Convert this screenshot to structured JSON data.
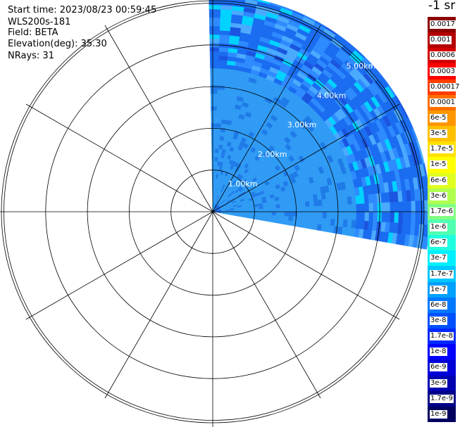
{
  "header": {
    "start_time": "Start time: 2023/08/23 00:59:45",
    "instrument": "WLS200s-181",
    "field": "Field: BETA",
    "elevation": "Elevation(deg): 35.30",
    "nrays": "NRays: 31"
  },
  "colorbar": {
    "units": "-1 sr",
    "levels": [
      {
        "label": "0.0017",
        "color": "#8c0000"
      },
      {
        "label": "0.001",
        "color": "#b40000"
      },
      {
        "label": "0.0006",
        "color": "#d40000"
      },
      {
        "label": "0.0003",
        "color": "#ff0000"
      },
      {
        "label": "0.00017",
        "color": "#ff3c00"
      },
      {
        "label": "0.0001",
        "color": "#ff6e00"
      },
      {
        "label": "6e-5",
        "color": "#ff9600"
      },
      {
        "label": "3e-5",
        "color": "#ffc000"
      },
      {
        "label": "1.7e-5",
        "color": "#ffe000"
      },
      {
        "label": "1e-5",
        "color": "#ffff00"
      },
      {
        "label": "6e-6",
        "color": "#e0ff20"
      },
      {
        "label": "3e-6",
        "color": "#b0ff50"
      },
      {
        "label": "1.7e-6",
        "color": "#80ff80"
      },
      {
        "label": "1e-6",
        "color": "#50ffb0"
      },
      {
        "label": "6e-7",
        "color": "#20ffe0"
      },
      {
        "label": "3e-7",
        "color": "#00f0ff"
      },
      {
        "label": "1.7e-7",
        "color": "#00c8ff"
      },
      {
        "label": "1e-7",
        "color": "#00a0ff"
      },
      {
        "label": "6e-8",
        "color": "#0078ff"
      },
      {
        "label": "3e-8",
        "color": "#0050ff"
      },
      {
        "label": "1.7e-8",
        "color": "#0028ff"
      },
      {
        "label": "1e-8",
        "color": "#0000ff"
      },
      {
        "label": "6e-9",
        "color": "#0000d8"
      },
      {
        "label": "3e-9",
        "color": "#0000b0"
      },
      {
        "label": "1.7e-9",
        "color": "#000088"
      },
      {
        "label": "1e-9",
        "color": "#000060"
      }
    ]
  },
  "chart_data": {
    "type": "heatmap",
    "projection": "polar PPI",
    "range_rings_km": [
      1,
      2,
      3,
      4,
      5
    ],
    "ring_labels": [
      "1.00km",
      "2.00km",
      "3.00km",
      "4.00km",
      "5.00km"
    ],
    "azimuth_spokes_deg": [
      0,
      30,
      60,
      90,
      120,
      150,
      180,
      210,
      240,
      270,
      300,
      330
    ],
    "sector_azimuth_deg": [
      -1,
      100
    ],
    "max_range_km": 5.2,
    "dominant_colors": [
      "#2e8bff",
      "#1a6cf0",
      "#4aaaff",
      "#00d2ff",
      "#1a55e0"
    ]
  }
}
